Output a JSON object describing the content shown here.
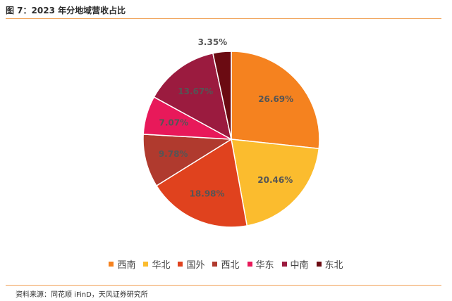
{
  "header": {
    "title": "图 7：2023 年分地域营收占比"
  },
  "footer": {
    "source": "资料来源：同花顺 iFinD，天风证券研究所"
  },
  "chart_data": {
    "type": "pie",
    "title": "图 7：2023 年分地域营收占比",
    "categories": [
      "西南",
      "华北",
      "国外",
      "西北",
      "华东",
      "中南",
      "东北"
    ],
    "values": [
      26.69,
      20.46,
      18.98,
      9.78,
      7.07,
      13.67,
      3.35
    ],
    "labels": [
      "26.69%",
      "20.46%",
      "18.98%",
      "9.78%",
      "7.07%",
      "13.67%",
      "3.35%"
    ],
    "colors": [
      "#f5821f",
      "#fbbc2e",
      "#e0421e",
      "#b03a2e",
      "#e8195a",
      "#9b1b3f",
      "#6b0b12"
    ],
    "legend_position": "bottom",
    "start_angle": "12 o'clock",
    "direction": "clockwise"
  }
}
